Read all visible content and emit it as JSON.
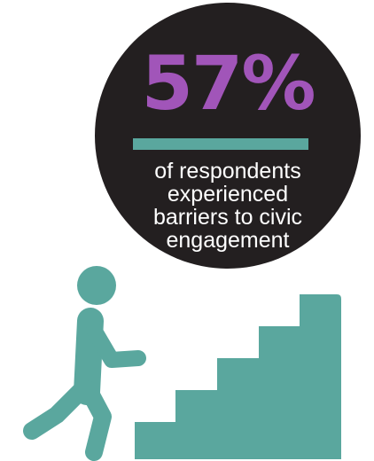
{
  "stat": {
    "value": "57%"
  },
  "caption": {
    "lines": [
      "of respondents",
      "experienced",
      "barriers to civic",
      "engagement"
    ]
  },
  "colors": {
    "circle": "#231f20",
    "stat": "#a155b9",
    "accent": "#5aa79e",
    "caption": "#ffffff"
  },
  "icons": [
    "walking-person-icon",
    "staircase-icon"
  ]
}
